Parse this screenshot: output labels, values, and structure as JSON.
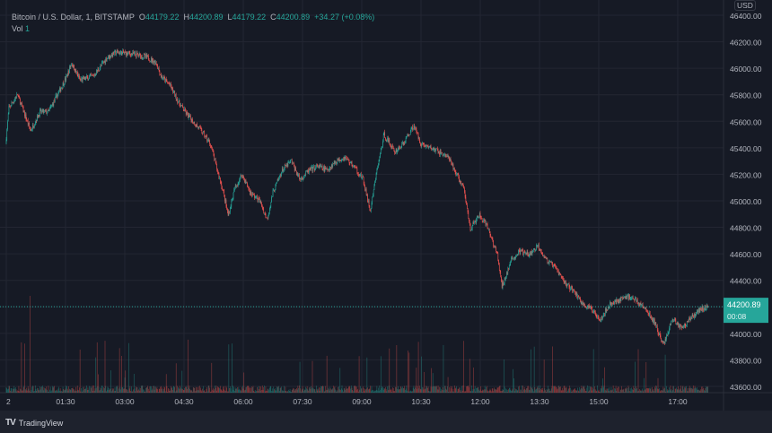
{
  "header": {
    "symbol": "Bitcoin / U.S. Dollar, 1, BITSTAMP",
    "open_label": "O",
    "open": "44179.22",
    "high_label": "H",
    "high": "44200.89",
    "low_label": "L",
    "low": "44179.22",
    "close_label": "C",
    "close": "44200.89",
    "change": "+34.27 (+0.08%)",
    "vol_label": "Vol",
    "vol": "1"
  },
  "currency": "USD",
  "footer": {
    "brand": "TradingView"
  },
  "colors": {
    "up": "#26a69a",
    "down": "#ef5350",
    "background": "#161a25",
    "grid": "#232632"
  },
  "chart_data": {
    "type": "candlestick",
    "interval": "1 minute",
    "ylim": [
      43560,
      46440
    ],
    "y_ticks": [
      "46400.00",
      "46200.00",
      "46000.00",
      "45800.00",
      "45600.00",
      "45400.00",
      "45200.00",
      "45000.00",
      "44800.00",
      "44600.00",
      "44400.00",
      "44200.00",
      "44000.00",
      "43800.00",
      "43600.00"
    ],
    "x_ticks": [
      "2",
      "01:30",
      "03:00",
      "04:30",
      "06:00",
      "07:30",
      "09:00",
      "10:30",
      "12:00",
      "13:30",
      "15:00",
      "17:00"
    ],
    "last_price": "44200.89",
    "countdown": "00:08",
    "grid": true,
    "approx_close_path": [
      [
        "00:00",
        45430
      ],
      [
        "00:05",
        45700
      ],
      [
        "00:18",
        45800
      ],
      [
        "00:38",
        45530
      ],
      [
        "00:52",
        45670
      ],
      [
        "01:05",
        45670
      ],
      [
        "01:26",
        45870
      ],
      [
        "01:33",
        45940
      ],
      [
        "01:40",
        46040
      ],
      [
        "01:53",
        45910
      ],
      [
        "02:13",
        45940
      ],
      [
        "02:34",
        46080
      ],
      [
        "02:48",
        46120
      ],
      [
        "03:08",
        46110
      ],
      [
        "03:22",
        46100
      ],
      [
        "03:36",
        46080
      ],
      [
        "03:49",
        46040
      ],
      [
        "03:56",
        45940
      ],
      [
        "04:10",
        45870
      ],
      [
        "04:23",
        45740
      ],
      [
        "04:37",
        45640
      ],
      [
        "04:57",
        45530
      ],
      [
        "05:11",
        45430
      ],
      [
        "05:20",
        45260
      ],
      [
        "05:31",
        45060
      ],
      [
        "05:38",
        44890
      ],
      [
        "05:48",
        45090
      ],
      [
        "05:59",
        45200
      ],
      [
        "06:12",
        45060
      ],
      [
        "06:26",
        45000
      ],
      [
        "06:37",
        44860
      ],
      [
        "06:46",
        45060
      ],
      [
        "07:00",
        45230
      ],
      [
        "07:14",
        45300
      ],
      [
        "07:27",
        45160
      ],
      [
        "07:41",
        45230
      ],
      [
        "07:55",
        45260
      ],
      [
        "08:08",
        45230
      ],
      [
        "08:22",
        45300
      ],
      [
        "08:35",
        45330
      ],
      [
        "08:49",
        45260
      ],
      [
        "09:03",
        45160
      ],
      [
        "09:14",
        44920
      ],
      [
        "09:24",
        45230
      ],
      [
        "09:35",
        45500
      ],
      [
        "09:51",
        45370
      ],
      [
        "10:04",
        45430
      ],
      [
        "10:20",
        45570
      ],
      [
        "10:31",
        45430
      ],
      [
        "10:45",
        45400
      ],
      [
        "10:58",
        45370
      ],
      [
        "11:12",
        45330
      ],
      [
        "11:25",
        45200
      ],
      [
        "11:36",
        45090
      ],
      [
        "11:46",
        44790
      ],
      [
        "12:00",
        44890
      ],
      [
        "12:13",
        44790
      ],
      [
        "12:27",
        44590
      ],
      [
        "12:34",
        44350
      ],
      [
        "12:48",
        44550
      ],
      [
        "13:01",
        44620
      ],
      [
        "13:15",
        44590
      ],
      [
        "13:29",
        44660
      ],
      [
        "13:42",
        44550
      ],
      [
        "13:56",
        44490
      ],
      [
        "14:10",
        44380
      ],
      [
        "14:23",
        44320
      ],
      [
        "14:37",
        44220
      ],
      [
        "14:50",
        44180
      ],
      [
        "15:04",
        44110
      ],
      [
        "15:18",
        44220
      ],
      [
        "15:31",
        44250
      ],
      [
        "15:45",
        44280
      ],
      [
        "15:58",
        44250
      ],
      [
        "16:12",
        44180
      ],
      [
        "16:26",
        44080
      ],
      [
        "16:39",
        43910
      ],
      [
        "16:53",
        44110
      ],
      [
        "17:07",
        44040
      ],
      [
        "17:20",
        44110
      ],
      [
        "17:34",
        44180
      ],
      [
        "17:47",
        44200.89
      ]
    ]
  }
}
